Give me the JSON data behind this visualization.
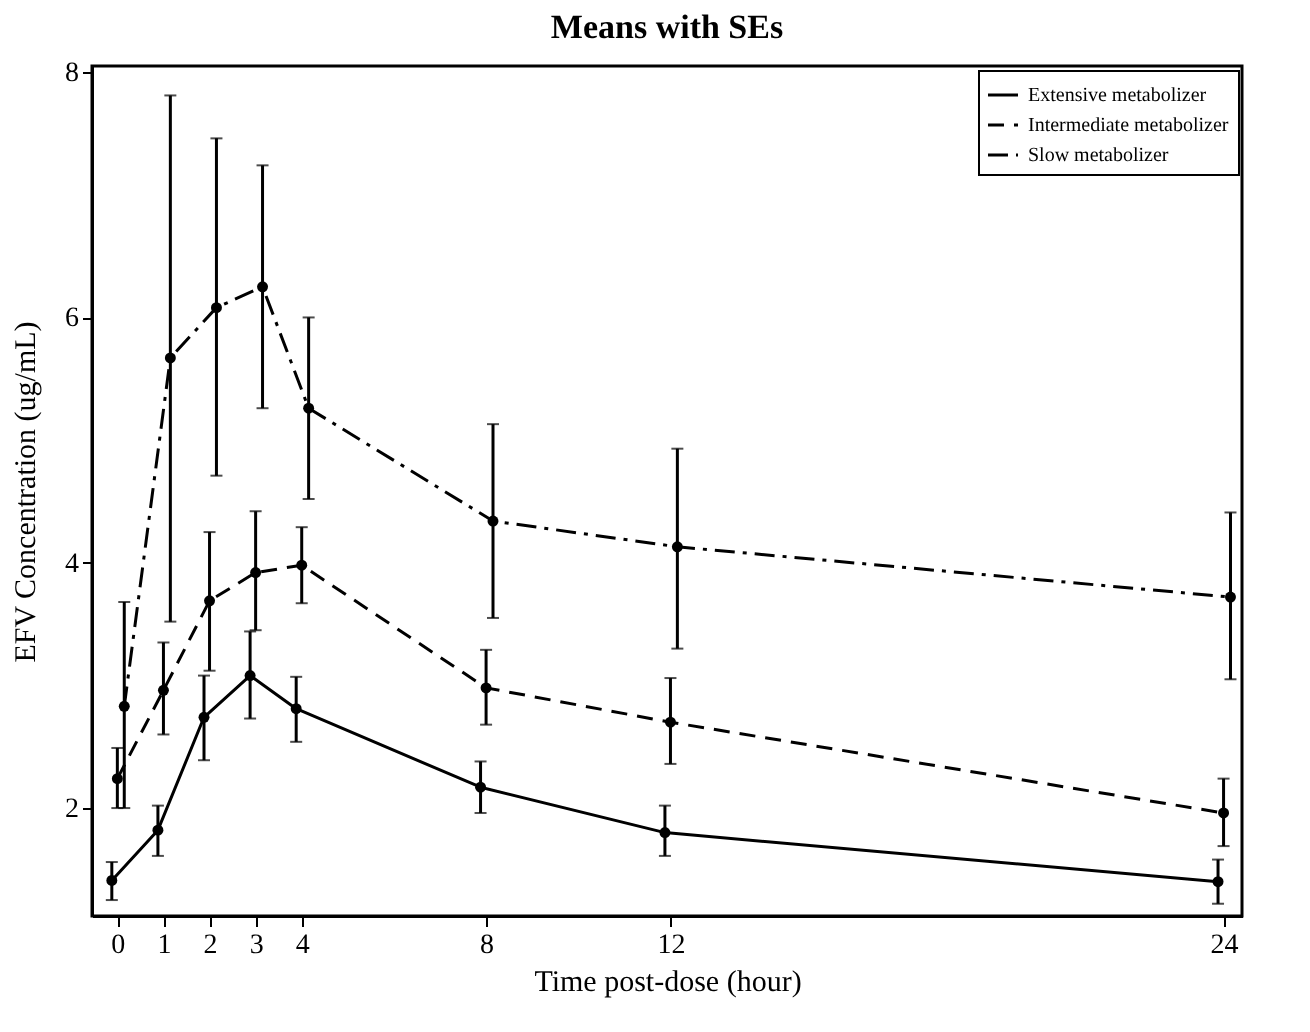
{
  "chart_data": {
    "type": "line",
    "title": "Means with SEs",
    "xlabel": "Time post-dose (hour)",
    "ylabel": "EFV Concentration (ug/mL)",
    "xlim": [
      -0.55,
      24.4
    ],
    "xticks": [
      0,
      1,
      2,
      3,
      4,
      8,
      12,
      24
    ],
    "ylim": [
      1.12,
      8.05
    ],
    "yticks": [
      2,
      4,
      6,
      8
    ],
    "legend": "top right",
    "marker": "circle",
    "series": [
      {
        "name": "Extensive metabolizer",
        "color": "#000000",
        "line_style": "solid",
        "x": [
          -0.12,
          0.88,
          1.88,
          2.88,
          3.88,
          7.88,
          11.88,
          23.88
        ],
        "values": [
          1.41,
          1.82,
          2.74,
          3.08,
          2.81,
          2.17,
          1.8,
          1.4
        ],
        "errors": [
          [
            1.25,
            1.56
          ],
          [
            1.61,
            2.02
          ],
          [
            2.39,
            3.08
          ],
          [
            2.73,
            3.44
          ],
          [
            2.54,
            3.07
          ],
          [
            1.96,
            2.38
          ],
          [
            1.61,
            2.02
          ],
          [
            1.22,
            1.58
          ]
        ]
      },
      {
        "name": "Intermediate metabolizer",
        "color": "#000000",
        "line_style": "dashed",
        "x": [
          0,
          1,
          2,
          3,
          4,
          8,
          12,
          24
        ],
        "values": [
          2.24,
          2.96,
          3.69,
          3.92,
          3.98,
          2.98,
          2.7,
          1.96
        ],
        "errors": [
          [
            2.0,
            2.49
          ],
          [
            2.6,
            3.35
          ],
          [
            3.12,
            4.25
          ],
          [
            3.45,
            4.42
          ],
          [
            3.67,
            4.29
          ],
          [
            2.68,
            3.29
          ],
          [
            2.36,
            3.06
          ],
          [
            1.69,
            2.24
          ]
        ]
      },
      {
        "name": "Slow metabolizer",
        "color": "#000000",
        "line_style": "dashdot",
        "x": [
          0.15,
          1.15,
          2.15,
          3.15,
          4.15,
          8.15,
          12.15,
          24.15
        ],
        "values": [
          2.83,
          5.67,
          6.08,
          6.25,
          5.26,
          4.34,
          4.13,
          3.72
        ],
        "errors": [
          [
            2.0,
            3.68
          ],
          [
            3.52,
            7.81
          ],
          [
            4.71,
            7.46
          ],
          [
            5.26,
            7.24
          ],
          [
            4.52,
            6.0
          ],
          [
            3.55,
            5.13
          ],
          [
            3.3,
            4.93
          ],
          [
            3.05,
            4.41
          ]
        ]
      }
    ]
  }
}
